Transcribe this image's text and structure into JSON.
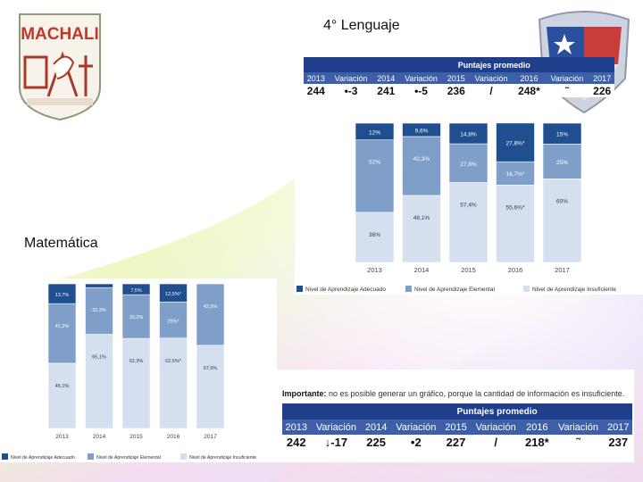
{
  "titles": {
    "lenguaje": "4° Lenguaje",
    "matematica": "Matemática"
  },
  "logo_text": "MACHALI",
  "note": {
    "bold": "Importante:",
    "text": " no es posible generar un gráfico, porque la cantidad de información es insuficiente."
  },
  "tables": {
    "lenguaje": {
      "header": "Puntajes promedio",
      "columns": [
        "2013",
        "Variación",
        "2014",
        "Variación",
        "2015",
        "Variación",
        "2016",
        "Variación",
        "2017"
      ],
      "values": [
        "244",
        "•-3",
        "241",
        "•-5",
        "236",
        "/",
        "248*",
        "˜",
        "226"
      ]
    },
    "matematica": {
      "header": "Puntajes promedio",
      "columns": [
        "2013",
        "Variación",
        "2014",
        "Variación",
        "2015",
        "Variación",
        "2016",
        "Variación",
        "2017"
      ],
      "values": [
        "242",
        "↓-17",
        "225",
        "•2",
        "227",
        "/",
        "218*",
        "˜",
        "237"
      ]
    }
  },
  "colors": {
    "adecuado": "#1f4f8f",
    "elemental": "#7f9fc8",
    "insuficiente": "#d6dff0"
  },
  "chart_data": [
    {
      "type": "bar",
      "stacked": true,
      "categories": [
        "2013",
        "2014",
        "2015",
        "2016",
        "2017"
      ],
      "series": [
        {
          "name": "Nivel de Aprendizaje Insuficiente",
          "values": [
            36,
            48.1,
            57.4,
            55.6,
            60
          ],
          "labels": [
            "36%",
            "48,1%",
            "57,4%",
            "55,6%*",
            "60%"
          ]
        },
        {
          "name": "Nivel de Aprendizaje Elemental",
          "values": [
            52,
            42.3,
            27.8,
            16.7,
            25
          ],
          "labels": [
            "52%",
            "42,3%",
            "27,8%",
            "16,7%*",
            "25%"
          ]
        },
        {
          "name": "Nivel de Aprendizaje Adecuado",
          "values": [
            12,
            9.6,
            14.8,
            27.8,
            15
          ],
          "labels": [
            "12%",
            "9,6%",
            "14,8%",
            "27,8%*",
            "15%"
          ]
        }
      ],
      "ylim": [
        0,
        100
      ],
      "legend": "bottom"
    },
    {
      "type": "bar",
      "stacked": true,
      "categories": [
        "2013",
        "2014",
        "2015",
        "2016",
        "2017"
      ],
      "series": [
        {
          "name": "Nivel de Aprendizaje Insuficiente",
          "values": [
            45.1,
            65.1,
            62.3,
            62.5,
            57.5
          ],
          "labels": [
            "45,1%",
            "65,1%",
            "62,3%",
            "62,5%*",
            "57,5%"
          ]
        },
        {
          "name": "Nivel de Aprendizaje Elemental",
          "values": [
            41.2,
            32.3,
            30.2,
            25,
            42.5
          ],
          "labels": [
            "41,2%",
            "32,3%",
            "30,2%",
            "25%*",
            "42,5%"
          ]
        },
        {
          "name": "Nivel de Aprendizaje Adecuado",
          "values": [
            13.7,
            2.6,
            7.5,
            12.5,
            0
          ],
          "labels": [
            "13,7%",
            "",
            "7,5%",
            "12,5%*",
            ""
          ]
        }
      ],
      "ylim": [
        0,
        100
      ],
      "legend": "bottom"
    }
  ]
}
